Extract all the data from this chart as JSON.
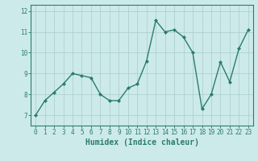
{
  "x": [
    0,
    1,
    2,
    3,
    4,
    5,
    6,
    7,
    8,
    9,
    10,
    11,
    12,
    13,
    14,
    15,
    16,
    17,
    18,
    19,
    20,
    21,
    22,
    23
  ],
  "y": [
    7.0,
    7.7,
    8.1,
    8.5,
    9.0,
    8.9,
    8.8,
    8.0,
    7.7,
    7.7,
    8.3,
    8.5,
    9.6,
    11.55,
    11.0,
    11.1,
    10.75,
    10.0,
    7.3,
    8.0,
    9.55,
    8.6,
    10.2,
    11.1
  ],
  "line_color": "#2a7c6f",
  "marker": "D",
  "marker_size": 2.0,
  "line_width": 1.0,
  "bg_color": "#cdeaea",
  "grid_color": "#b0d0d0",
  "xlabel": "Humidex (Indice chaleur)",
  "xlabel_fontsize": 7,
  "ylim": [
    6.5,
    12.3
  ],
  "xlim": [
    -0.5,
    23.5
  ],
  "yticks": [
    7,
    8,
    9,
    10,
    11,
    12
  ],
  "xticks": [
    0,
    1,
    2,
    3,
    4,
    5,
    6,
    7,
    8,
    9,
    10,
    11,
    12,
    13,
    14,
    15,
    16,
    17,
    18,
    19,
    20,
    21,
    22,
    23
  ],
  "tick_fontsize": 5.5,
  "axis_color": "#2a7c6f"
}
